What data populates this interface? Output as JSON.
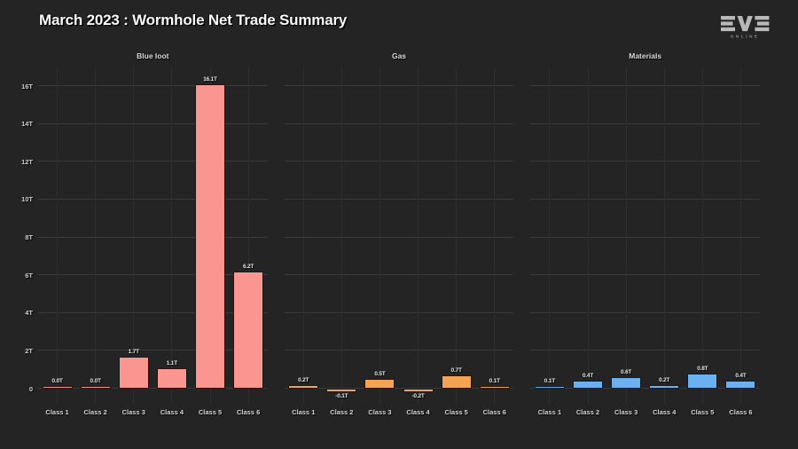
{
  "header": {
    "title": "March 2023 : Wormhole Net Trade Summary",
    "logo_text": "EVE",
    "logo_subtext": "ONLINE"
  },
  "colors": {
    "background": "#242424",
    "grid_horizontal": "#3a3a3a",
    "grid_vertical": "#2e2e2e",
    "bar_border": "#191919",
    "title_text": "#fafafa",
    "label_text": "#d2d2d2",
    "blue_loot_bar": "#fa968f",
    "gas_bar": "#f2a356",
    "materials_bar": "#6bb0f0"
  },
  "y_axis": {
    "unit": "T",
    "tick_values": [
      0,
      2,
      4,
      6,
      8,
      10,
      12,
      14,
      16
    ],
    "tick_labels": [
      "0",
      "2T",
      "4T",
      "6T",
      "8T",
      "10T",
      "12T",
      "14T",
      "16T"
    ]
  },
  "chart_data": [
    {
      "type": "bar",
      "title": "Blue loot",
      "categories": [
        "Class 1",
        "Class 2",
        "Class 3",
        "Class 4",
        "Class 5",
        "Class 6"
      ],
      "values": [
        0.0,
        0.0,
        1.7,
        1.1,
        16.1,
        6.2
      ],
      "value_labels": [
        "0.0T",
        "0.0T",
        "1.7T",
        "1.1T",
        "16.1T",
        "6.2T"
      ],
      "color": "#fa968f",
      "ylim": [
        -0.9,
        17
      ],
      "grid": "on",
      "legend": "none"
    },
    {
      "type": "bar",
      "title": "Gas",
      "categories": [
        "Class 1",
        "Class 2",
        "Class 3",
        "Class 4",
        "Class 5",
        "Class 6"
      ],
      "values": [
        0.2,
        -0.1,
        0.5,
        -0.2,
        0.7,
        0.1
      ],
      "value_labels": [
        "0.2T",
        "-0.1T",
        "0.5T",
        "-0.2T",
        "0.7T",
        "0.1T"
      ],
      "color": "#f2a356",
      "ylim": [
        -0.9,
        17
      ],
      "grid": "on",
      "legend": "none"
    },
    {
      "type": "bar",
      "title": "Materials",
      "categories": [
        "Class 1",
        "Class 2",
        "Class 3",
        "Class 4",
        "Class 5",
        "Class 6"
      ],
      "values": [
        0.1,
        0.4,
        0.6,
        0.2,
        0.8,
        0.4
      ],
      "value_labels": [
        "0.1T",
        "0.4T",
        "0.6T",
        "0.2T",
        "0.8T",
        "0.4T"
      ],
      "color": "#6bb0f0",
      "ylim": [
        -0.9,
        17
      ],
      "grid": "on",
      "legend": "none"
    }
  ]
}
